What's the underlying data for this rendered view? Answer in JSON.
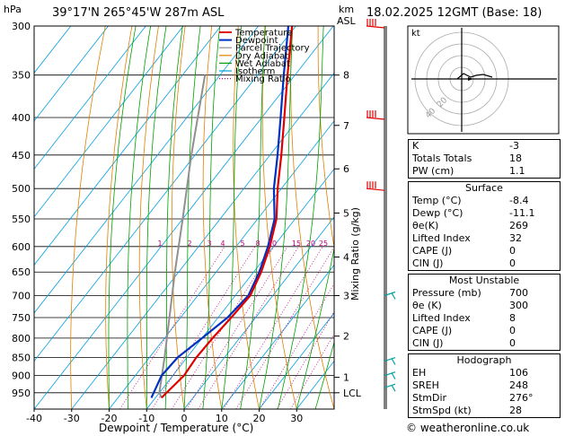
{
  "header": {
    "hpa_label": "hPa",
    "location": "39°17'N  265°45'W  287m  ASL",
    "km_label": "km",
    "asl_label": "ASL",
    "datetime": "18.02.2025  12GMT  (Base: 18)"
  },
  "chart_data": {
    "type": "skew-t",
    "xlabel": "Dewpoint / Temperature (°C)",
    "ylabel_left": "hPa",
    "ylabel_right": "Mixing Ratio (g/kg)",
    "pressure_ticks": [
      300,
      350,
      400,
      450,
      500,
      550,
      600,
      650,
      700,
      750,
      800,
      850,
      900,
      950
    ],
    "temp_ticks": [
      -40,
      -30,
      -20,
      -10,
      0,
      10,
      20,
      30
    ],
    "xlim": [
      -40,
      40
    ],
    "plim": [
      300,
      1000
    ],
    "km_ticks": [
      {
        "label": "8",
        "p": 350
      },
      {
        "label": "7",
        "p": 410
      },
      {
        "label": "6",
        "p": 470
      },
      {
        "label": "5",
        "p": 540
      },
      {
        "label": "4",
        "p": 620
      },
      {
        "label": "3",
        "p": 700
      },
      {
        "label": "2",
        "p": 795
      },
      {
        "label": "1",
        "p": 905
      },
      {
        "label": "LCL",
        "p": 950
      }
    ],
    "mixing_ratio_labels": [
      "1",
      "2",
      "3",
      "4",
      "5",
      "8",
      "10",
      "15",
      "20",
      "25"
    ],
    "mixing_ratio_values": [
      1,
      2,
      3,
      4,
      5,
      8,
      10,
      15,
      20,
      25
    ],
    "legend": [
      {
        "name": "Temperature",
        "color": "#e00000"
      },
      {
        "name": "Dewpoint",
        "color": "#0030c0"
      },
      {
        "name": "Parcel Trajectory",
        "color": "#909090"
      },
      {
        "name": "Dry Adiabat",
        "color": "#e08000"
      },
      {
        "name": "Wet Adiabat",
        "color": "#00a000"
      },
      {
        "name": "Isotherm",
        "color": "#00a0e0"
      },
      {
        "name": "Mixing Ratio",
        "color": "#c00080"
      }
    ],
    "temperature": [
      {
        "p": 965,
        "t": -8.4
      },
      {
        "p": 900,
        "t": -7
      },
      {
        "p": 850,
        "t": -7.5
      },
      {
        "p": 800,
        "t": -7.2
      },
      {
        "p": 750,
        "t": -6.5
      },
      {
        "p": 700,
        "t": -6
      },
      {
        "p": 650,
        "t": -8
      },
      {
        "p": 600,
        "t": -11
      },
      {
        "p": 550,
        "t": -15
      },
      {
        "p": 500,
        "t": -21
      },
      {
        "p": 450,
        "t": -27
      },
      {
        "p": 400,
        "t": -34
      },
      {
        "p": 350,
        "t": -42
      },
      {
        "p": 300,
        "t": -51
      }
    ],
    "dewpoint": [
      {
        "p": 965,
        "t": -11.1
      },
      {
        "p": 900,
        "t": -13
      },
      {
        "p": 850,
        "t": -12.5
      },
      {
        "p": 800,
        "t": -10
      },
      {
        "p": 750,
        "t": -7.5
      },
      {
        "p": 700,
        "t": -6.5
      },
      {
        "p": 650,
        "t": -8.5
      },
      {
        "p": 600,
        "t": -11.5
      },
      {
        "p": 550,
        "t": -15.5
      },
      {
        "p": 500,
        "t": -22
      },
      {
        "p": 450,
        "t": -28
      },
      {
        "p": 400,
        "t": -35
      },
      {
        "p": 350,
        "t": -43
      },
      {
        "p": 300,
        "t": -52
      }
    ],
    "parcel": [
      {
        "p": 965,
        "t": -8.4
      },
      {
        "p": 950,
        "t": -10
      },
      {
        "p": 850,
        "t": -16
      },
      {
        "p": 750,
        "t": -23
      },
      {
        "p": 650,
        "t": -31
      },
      {
        "p": 550,
        "t": -40
      },
      {
        "p": 450,
        "t": -51
      },
      {
        "p": 350,
        "t": -64
      }
    ]
  },
  "hodograph": {
    "unit_label": "kt",
    "ring_labels": [
      "20",
      "40"
    ]
  },
  "indices": [
    {
      "label": "K",
      "value": "-3"
    },
    {
      "label": "Totals Totals",
      "value": "18"
    },
    {
      "label": "PW (cm)",
      "value": "1.1"
    }
  ],
  "surface": {
    "title": "Surface",
    "rows": [
      {
        "label": "Temp (°C)",
        "value": "-8.4"
      },
      {
        "label": "Dewp (°C)",
        "value": "-11.1"
      },
      {
        "label": "θe(K)",
        "value": "269"
      },
      {
        "label": "Lifted Index",
        "value": "32"
      },
      {
        "label": "CAPE (J)",
        "value": "0"
      },
      {
        "label": "CIN (J)",
        "value": "0"
      }
    ]
  },
  "most_unstable": {
    "title": "Most Unstable",
    "rows": [
      {
        "label": "Pressure (mb)",
        "value": "700"
      },
      {
        "label": "θe (K)",
        "value": "300"
      },
      {
        "label": "Lifted Index",
        "value": "8"
      },
      {
        "label": "CAPE (J)",
        "value": "0"
      },
      {
        "label": "CIN (J)",
        "value": "0"
      }
    ]
  },
  "hodograph_table": {
    "title": "Hodograph",
    "rows": [
      {
        "label": "EH",
        "value": "106"
      },
      {
        "label": "SREH",
        "value": "248"
      },
      {
        "label": "StmDir",
        "value": "276°"
      },
      {
        "label": "StmSpd (kt)",
        "value": "28"
      }
    ]
  },
  "footer": {
    "credit": "© weatheronline.co.uk"
  },
  "colors": {
    "temp": "#e00000",
    "dew": "#0030c0",
    "parcel": "#909090",
    "dry": "#e08000",
    "wet": "#00a000",
    "iso": "#00a0e0",
    "mix": "#c00080",
    "wind_upper": "#e00000",
    "wind_lower": "#00a0a0"
  }
}
